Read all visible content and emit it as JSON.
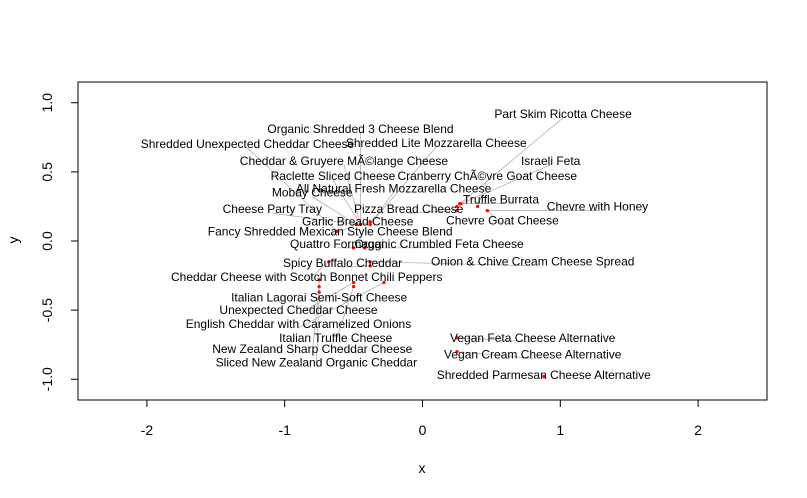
{
  "chart_data": {
    "type": "scatter",
    "xlabel": "x",
    "ylabel": "y",
    "xlim": [
      -2.5,
      2.5
    ],
    "ylim": [
      -1.15,
      1.15
    ],
    "x_ticks": [
      -2,
      -1,
      0,
      1,
      2
    ],
    "y_ticks": [
      -1.0,
      -0.5,
      0.0,
      0.5,
      1.0
    ],
    "y_tick_labels": [
      "-1.0",
      "-0.5",
      "0.0",
      "0.5",
      "1.0"
    ],
    "grid": false,
    "point_color": "#ff0000",
    "leader_color": "#b0b0b0",
    "points": [
      {
        "label": "Part Skim Ricotta Cheese",
        "x": 0.25,
        "y": 0.25,
        "lx": 1.02,
        "ly": 0.92
      },
      {
        "label": "Organic Shredded 3 Cheese Blend",
        "x": -0.45,
        "y": 0.12,
        "lx": -0.45,
        "ly": 0.81
      },
      {
        "label": "Shredded Unexpected Cheddar Cheese",
        "x": -0.62,
        "y": 0.07,
        "lx": -1.27,
        "ly": 0.7
      },
      {
        "label": "Shredded Lite Mozzarella Cheese",
        "x": -0.38,
        "y": 0.12,
        "lx": 0.1,
        "ly": 0.71
      },
      {
        "label": "Cheddar & Gruyere MÃ©lange Cheese",
        "x": -0.45,
        "y": 0.12,
        "lx": -0.57,
        "ly": 0.58
      },
      {
        "label": "Israeli Feta",
        "x": 0.28,
        "y": 0.27,
        "lx": 0.93,
        "ly": 0.58
      },
      {
        "label": "Raclette Sliced Cheese",
        "x": -0.45,
        "y": 0.12,
        "lx": -0.65,
        "ly": 0.47
      },
      {
        "label": "Cranberry ChÃ©vre Goat Cheese",
        "x": 0.4,
        "y": 0.25,
        "lx": 0.47,
        "ly": 0.47
      },
      {
        "label": "All Natural Fresh Mozzarella Cheese",
        "x": -0.38,
        "y": 0.12,
        "lx": -0.21,
        "ly": 0.38
      },
      {
        "label": "Mobay Cheese",
        "x": -0.48,
        "y": 0.12,
        "lx": -0.8,
        "ly": 0.35
      },
      {
        "label": "Truffle Burrata",
        "x": 0.27,
        "y": 0.27,
        "lx": 0.57,
        "ly": 0.3
      },
      {
        "label": "Chevre with Honey",
        "x": 0.47,
        "y": 0.22,
        "lx": 1.27,
        "ly": 0.25
      },
      {
        "label": "Cheese Party Tray",
        "x": -0.48,
        "y": 0.12,
        "lx": -1.09,
        "ly": 0.23
      },
      {
        "label": "Pizza Bread Cheese",
        "x": 0.25,
        "y": 0.22,
        "lx": -0.1,
        "ly": 0.23
      },
      {
        "label": "Garlic Bread Cheese",
        "x": -0.38,
        "y": 0.14,
        "lx": -0.47,
        "ly": 0.14
      },
      {
        "label": "Chevre Goat Cheese",
        "x": 0.47,
        "y": 0.22,
        "lx": 0.58,
        "ly": 0.15
      },
      {
        "label": "Fancy Shredded Mexican Style Cheese Blend",
        "x": -0.48,
        "y": 0.12,
        "lx": -0.67,
        "ly": 0.07
      },
      {
        "label": "Quattro Formaggi",
        "x": -0.5,
        "y": -0.05,
        "lx": -0.62,
        "ly": -0.02
      },
      {
        "label": "Organic Crumbled Feta Cheese",
        "x": -0.42,
        "y": -0.05,
        "lx": 0.12,
        "ly": -0.02
      },
      {
        "label": "Spicy Buffalo Cheddar",
        "x": -0.38,
        "y": -0.18,
        "lx": -0.58,
        "ly": -0.16
      },
      {
        "label": "Onion & Chive Cream Cheese Spread",
        "x": -0.38,
        "y": -0.15,
        "lx": 0.8,
        "ly": -0.15
      },
      {
        "label": "Cheddar Cheese with Scotch Bonnet Chili Peppers",
        "x": -0.68,
        "y": -0.15,
        "lx": -0.84,
        "ly": -0.26
      },
      {
        "label": "Italian Lagorai Semi-Soft Cheese",
        "x": -0.75,
        "y": -0.28,
        "lx": -0.75,
        "ly": -0.41
      },
      {
        "label": "Unexpected Cheddar Cheese",
        "x": -0.5,
        "y": -0.3,
        "lx": -0.9,
        "ly": -0.5
      },
      {
        "label": "English Cheddar with Caramelized Onions",
        "x": -0.28,
        "y": -0.3,
        "lx": -0.9,
        "ly": -0.6
      },
      {
        "label": "Italian Truffle Cheese",
        "x": -0.5,
        "y": -0.33,
        "lx": -0.63,
        "ly": -0.7
      },
      {
        "label": "Vegan Feta Cheese Alternative",
        "x": 0.25,
        "y": -0.7,
        "lx": 0.8,
        "ly": -0.7
      },
      {
        "label": "New Zealand Sharp Cheddar Cheese",
        "x": -0.75,
        "y": -0.33,
        "lx": -0.8,
        "ly": -0.78
      },
      {
        "label": "Vegan Cream Cheese Alternative",
        "x": 0.25,
        "y": -0.8,
        "lx": 0.8,
        "ly": -0.82
      },
      {
        "label": "Sliced New Zealand Organic Cheddar",
        "x": -0.75,
        "y": -0.37,
        "lx": -0.77,
        "ly": -0.88
      },
      {
        "label": "Shredded Parmesan Cheese Alternative",
        "x": 0.88,
        "y": -0.98,
        "lx": 0.88,
        "ly": -0.97
      }
    ]
  }
}
